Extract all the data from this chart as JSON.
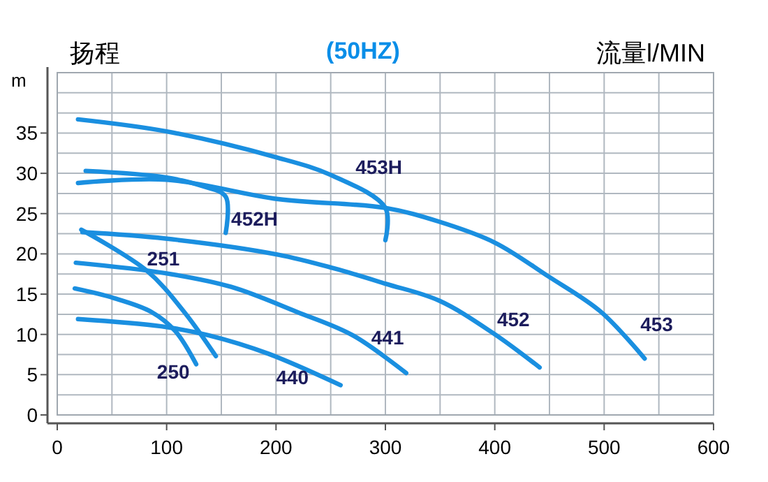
{
  "chart_data": {
    "type": "line",
    "title": "(50HZ)",
    "xlabel": "流量l/MIN",
    "ylabel": "扬程",
    "annotations": [
      "m"
    ],
    "xlim": [
      0,
      600
    ],
    "ylim": [
      0,
      42.5
    ],
    "xticks": [
      0,
      {
        "value": 50,
        "label": null
      },
      100,
      {
        "value": 150,
        "label": null
      },
      200,
      {
        "value": 250,
        "label": null
      },
      300,
      {
        "value": 350,
        "label": null
      },
      400,
      {
        "value": 450,
        "label": null
      },
      500,
      {
        "value": 550,
        "label": null
      },
      600
    ],
    "yticks": [
      0,
      {
        "value": 2.5,
        "label": null
      },
      5,
      {
        "value": 7.5,
        "label": null
      },
      10,
      {
        "value": 12.5,
        "label": null
      },
      15,
      {
        "value": 17.5,
        "label": null
      },
      20,
      {
        "value": 22.5,
        "label": null
      },
      25,
      {
        "value": 27.5,
        "label": null
      },
      30,
      {
        "value": 32.5,
        "label": null
      },
      35,
      {
        "value": 37.5,
        "label": null
      },
      {
        "value": 40,
        "label": null
      },
      {
        "value": 42.5,
        "label": null
      }
    ],
    "grid": true,
    "marker": "none",
    "line_style": "solid",
    "series": [
      {
        "name": "453H",
        "color": "#1a8fe0",
        "x": [
          19,
          100,
          200,
          250,
          300,
          300
        ],
        "values": [
          36.7,
          35.2,
          32,
          29.8,
          25.7,
          21.7
        ]
      },
      {
        "name": "452H",
        "color": "#1a8fe0",
        "x": [
          26,
          99,
          133,
          154,
          154
        ],
        "values": [
          30.3,
          29.5,
          28.4,
          27.1,
          22.6
        ]
      },
      {
        "name": "453",
        "color": "#1a8fe0",
        "x": [
          19,
          100,
          202,
          300,
          349,
          400,
          449,
          497,
          537
        ],
        "values": [
          28.8,
          29.2,
          26.8,
          25.7,
          24,
          21.4,
          17.2,
          12.8,
          7
        ]
      },
      {
        "name": "452",
        "color": "#1a8fe0",
        "x": [
          23,
          99,
          202,
          253,
          300,
          349,
          398,
          441
        ],
        "values": [
          22.7,
          21.9,
          19.9,
          18.2,
          16.3,
          14.2,
          10.2,
          5.9
        ]
      },
      {
        "name": "251",
        "color": "#1a8fe0",
        "x": [
          22,
          82,
          116,
          145
        ],
        "values": [
          23,
          17.9,
          12.8,
          7.3
        ]
      },
      {
        "name": "441",
        "color": "#1a8fe0",
        "x": [
          17,
          99,
          159,
          219,
          270,
          319
        ],
        "values": [
          18.9,
          17.6,
          15.9,
          12.8,
          9.9,
          5.2
        ]
      },
      {
        "name": "250",
        "color": "#1a8fe0",
        "x": [
          16,
          52,
          86,
          108,
          127
        ],
        "values": [
          15.7,
          14.5,
          12.8,
          10.4,
          6.3
        ]
      },
      {
        "name": "440",
        "color": "#1a8fe0",
        "x": [
          19,
          95,
          138,
          193,
          259
        ],
        "values": [
          11.9,
          11,
          9.9,
          7.6,
          3.7
        ]
      }
    ]
  }
}
